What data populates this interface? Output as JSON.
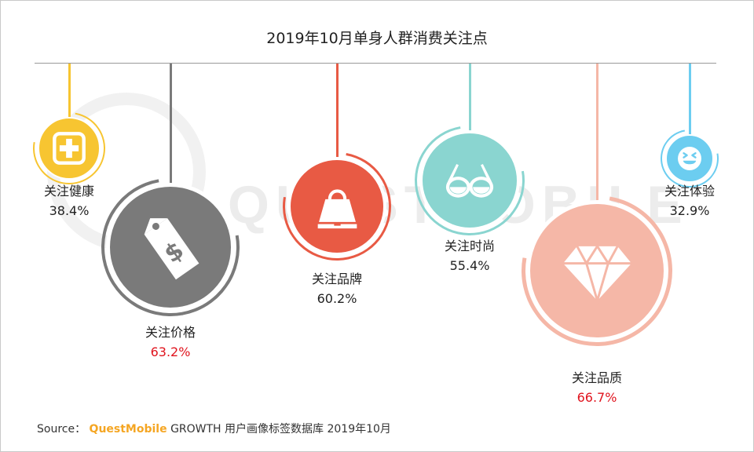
{
  "title": "2019年10月单身人群消费关注点",
  "watermark": "QUESTMOBILE",
  "source": {
    "prefix": "Source：",
    "brand": "QuestMobile",
    "rest": "GROWTH 用户画像标签数据库 2019年10月"
  },
  "chart_data": {
    "type": "bubble",
    "title": "2019年10月单身人群消费关注点",
    "categories": [
      "关注健康",
      "关注价格",
      "关注品牌",
      "关注时尚",
      "关注品质",
      "关注体验"
    ],
    "values": [
      38.4,
      63.2,
      60.2,
      55.4,
      66.7,
      32.9
    ],
    "value_labels": [
      "38.4%",
      "63.2%",
      "60.2%",
      "55.4%",
      "66.7%",
      "32.9%"
    ],
    "unit": "%",
    "colors": [
      "#f7c531",
      "#7a7a7a",
      "#e85a44",
      "#8ad5d0",
      "#f5b7a7",
      "#6ccdf0"
    ],
    "highlight_color": "#e0141e",
    "highlighted": [
      "关注价格",
      "关注品质"
    ],
    "icons": [
      "first-aid-cross-icon",
      "price-tag-icon",
      "shopping-bag-icon",
      "sunglasses-icon",
      "diamond-icon",
      "laughing-face-icon"
    ]
  }
}
